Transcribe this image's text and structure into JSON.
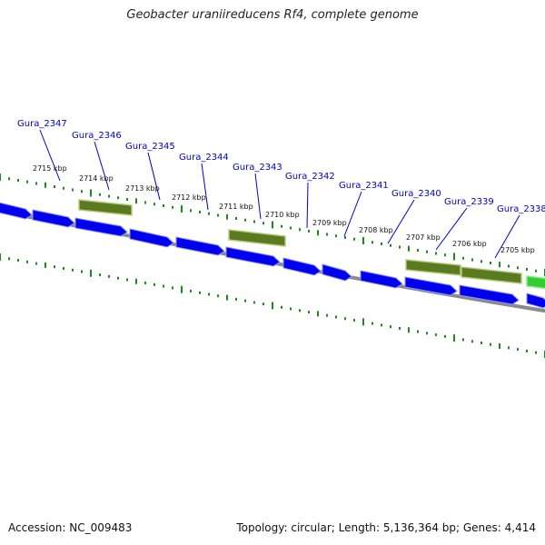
{
  "header": {
    "title": "Geobacter uraniireducens Rf4, complete genome"
  },
  "footer": {
    "accession": "Accession: NC_009483",
    "summary": "Topology: circular; Length: 5,136,364 bp; Genes: 4,414"
  },
  "colors": {
    "forward_gene": "#0000ee",
    "forward_gene_highlight": "#8f8fff",
    "reverse_gene": "#5a7a20",
    "reverse_gene_highlight": "#b8c87a",
    "selected_gene": "#33cc33",
    "backbone": "#8a8a8a",
    "tick_marks": "#1c8c1c",
    "gene_label": "#0000cc"
  },
  "genes": [
    {
      "name": "Gura_2347",
      "strand": "forward"
    },
    {
      "name": "Gura_2346",
      "strand": "forward"
    },
    {
      "name": "Gura_2345",
      "strand": "forward"
    },
    {
      "name": "Gura_2344",
      "strand": "forward"
    },
    {
      "name": "Gura_2343",
      "strand": "forward"
    },
    {
      "name": "Gura_2342",
      "strand": "forward"
    },
    {
      "name": "Gura_2341",
      "strand": "forward"
    },
    {
      "name": "Gura_2340",
      "strand": "forward"
    },
    {
      "name": "Gura_2339",
      "strand": "forward"
    },
    {
      "name": "Gura_2338",
      "strand": "forward"
    }
  ],
  "kbp_labels": [
    "2715 kbp",
    "2714 kbp",
    "2713 kbp",
    "2712 kbp",
    "2711 kbp",
    "2710 kbp",
    "2709 kbp",
    "2708 kbp",
    "2707 kbp",
    "2706 kbp",
    "2705 kbp"
  ]
}
